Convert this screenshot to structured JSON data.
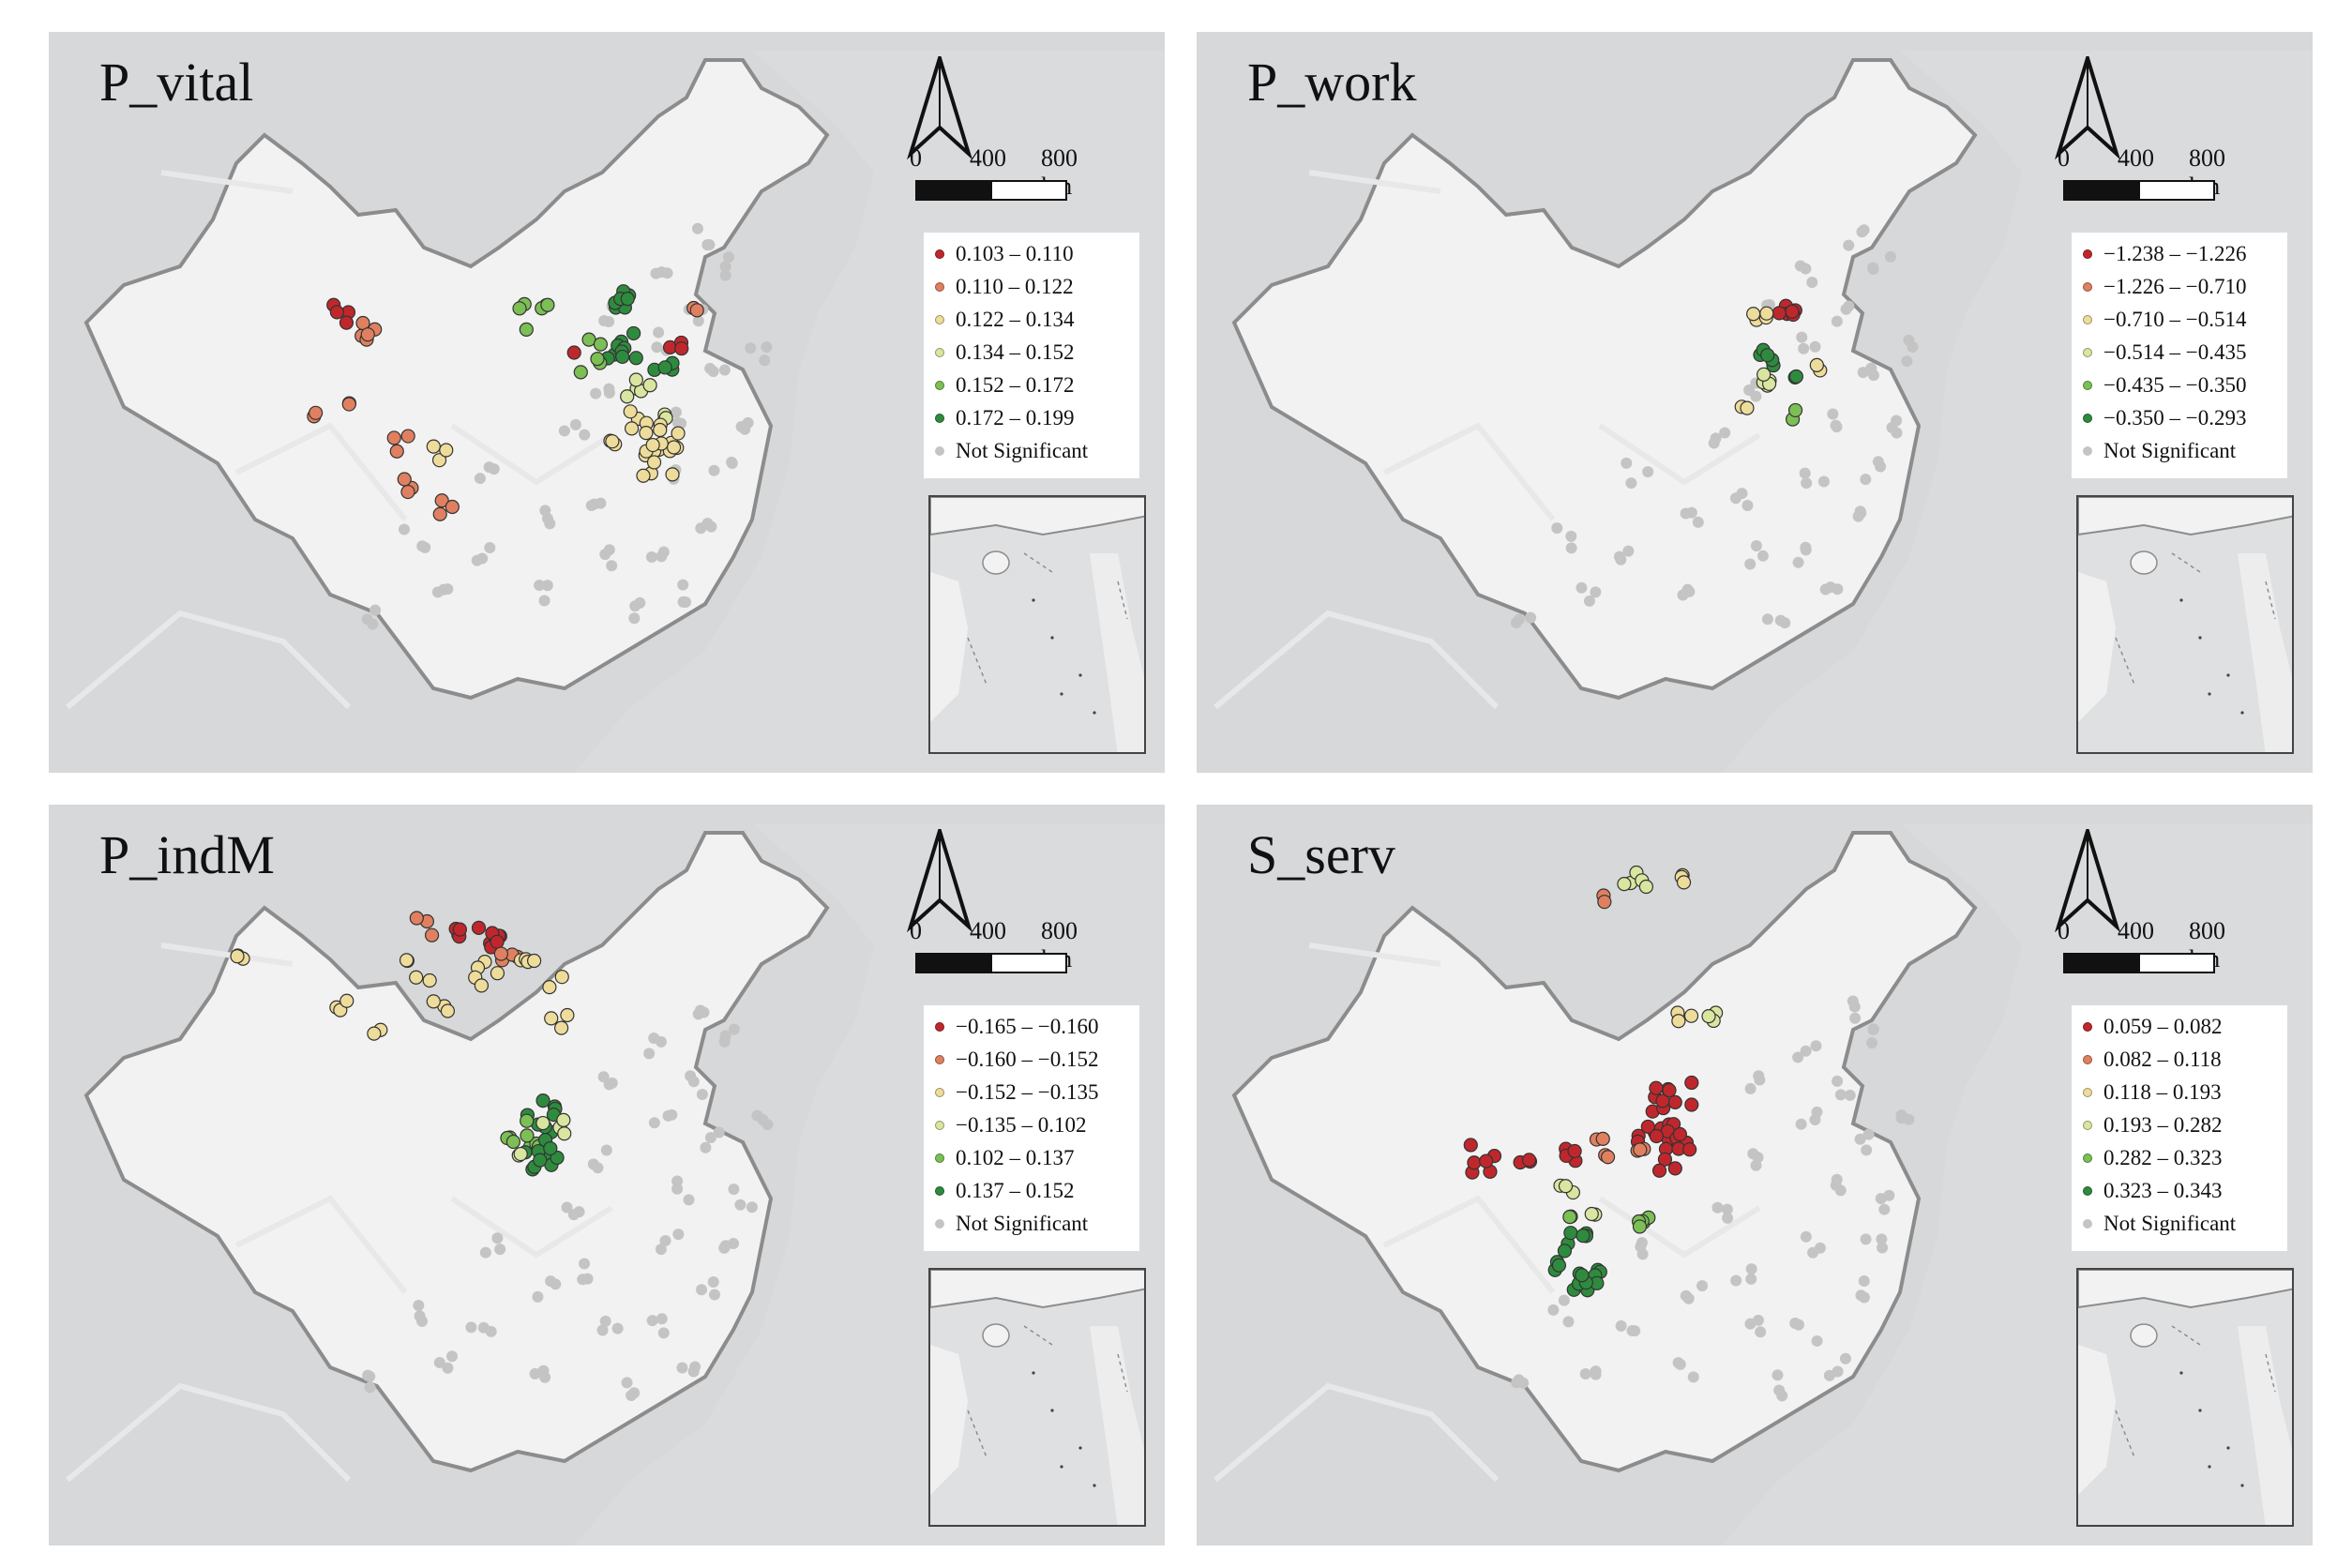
{
  "figure": {
    "scale_labels": [
      "0",
      "400",
      "800 km"
    ],
    "not_significant_label": "Not Significant",
    "colors": {
      "class_colors": [
        "#c0272d",
        "#e08060",
        "#eedc9a",
        "#d9e6a0",
        "#7cbf55",
        "#2e8b3e"
      ],
      "not_significant": "#c4c4c4",
      "land": "#f2f2f2",
      "sea": "#d6d8da",
      "border": "#8c8c8c"
    },
    "icons": [
      "north-arrow-icon",
      "scale-bar-icon"
    ]
  },
  "panels": [
    {
      "id": "p_vital",
      "title": "P_vital",
      "legend": [
        "0.103 – 0.110",
        "0.110 – 0.122",
        "0.122 – 0.134",
        "0.134 – 0.152",
        "0.152 – 0.172",
        "0.172 – 0.199",
        "Not Significant"
      ]
    },
    {
      "id": "p_work",
      "title": "P_work",
      "legend": [
        "−1.238 – −1.226",
        "−1.226 – −0.710",
        "−0.710 – −0.514",
        "−0.514 – −0.435",
        "−0.435 – −0.350",
        "−0.350 – −0.293",
        "Not Significant"
      ]
    },
    {
      "id": "p_indm",
      "title": "P_indM",
      "legend": [
        "−0.165 – −0.160",
        "−0.160 – −0.152",
        "−0.152 – −0.135",
        "−0.135 – 0.102",
        "0.102 – 0.137",
        "0.137 – 0.152",
        "Not Significant"
      ]
    },
    {
      "id": "s_serv",
      "title": "S_serv",
      "legend": [
        "0.059 – 0.082",
        "0.082 – 0.118",
        "0.118 – 0.193",
        "0.193 – 0.282",
        "0.282 – 0.323",
        "0.323 – 0.343",
        "Not Significant"
      ]
    }
  ]
}
